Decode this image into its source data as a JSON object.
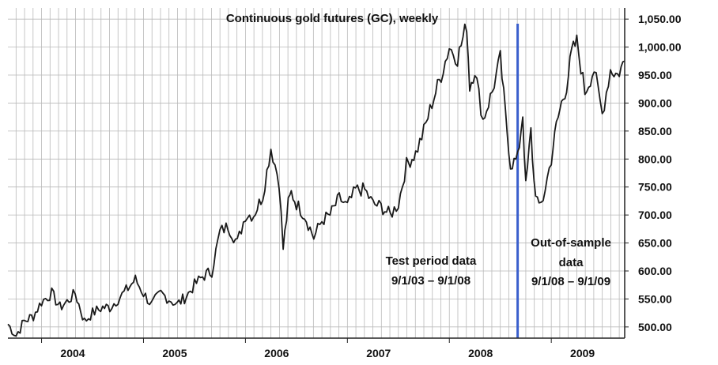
{
  "chart_data": {
    "type": "line",
    "title": "Continuous gold futures (GC), weekly",
    "xlabel": "",
    "ylabel": "",
    "x_tick_labels": [
      "2004",
      "2005",
      "2006",
      "2007",
      "2008",
      "2009"
    ],
    "y_tick_labels": [
      "500.00",
      "550.00",
      "600.00",
      "650.00",
      "700.00",
      "750.00",
      "800.00",
      "850.00",
      "900.00",
      "950.00",
      "1,000.00",
      "1,050.00"
    ],
    "ylim": [
      480,
      1070
    ],
    "xlim": [
      2003.67,
      2009.72
    ],
    "grid": true,
    "series_color": "#1a1a1a",
    "divider": {
      "x": 2008.67,
      "color": "#3a5fcd"
    },
    "annotations": {
      "test_line1": "Test period data",
      "test_line2": "9/1/03 – 9/1/08",
      "oos_line1": "Out-of-sample",
      "oos_line2": "data",
      "oos_line3": "9/1/08 – 9/1/09"
    },
    "series": [
      {
        "x": [
          2003.67,
          2003.75,
          2003.83,
          2003.92,
          2004.0,
          2004.1,
          2004.18,
          2004.25,
          2004.33,
          2004.42,
          2004.5,
          2004.6,
          2004.67,
          2004.75,
          2004.83,
          2004.92,
          2005.0,
          2005.08,
          2005.17,
          2005.25,
          2005.33,
          2005.42,
          2005.5,
          2005.58,
          2005.67,
          2005.75,
          2005.83,
          2005.92,
          2006.0,
          2006.08,
          2006.17,
          2006.25,
          2006.33,
          2006.37,
          2006.42,
          2006.45,
          2006.5,
          2006.58,
          2006.67,
          2006.75,
          2006.83,
          2006.92,
          2007.0,
          2007.08,
          2007.17,
          2007.25,
          2007.33,
          2007.42,
          2007.5,
          2007.58,
          2007.67,
          2007.75,
          2007.83,
          2007.92,
          2008.0,
          2008.08,
          2008.17,
          2008.2,
          2008.25,
          2008.33,
          2008.42,
          2008.5,
          2008.55,
          2008.6,
          2008.67,
          2008.72,
          2008.75,
          2008.8,
          2008.83,
          2008.88,
          2008.92,
          2009.0,
          2009.05,
          2009.1,
          2009.15,
          2009.2,
          2009.25,
          2009.33,
          2009.42,
          2009.5,
          2009.58,
          2009.65,
          2009.72
        ],
        "values": [
          505,
          485,
          510,
          520,
          545,
          560,
          535,
          545,
          560,
          510,
          525,
          535,
          535,
          550,
          565,
          585,
          560,
          540,
          560,
          550,
          540,
          555,
          575,
          590,
          600,
          670,
          680,
          650,
          700,
          700,
          735,
          820,
          760,
          640,
          720,
          740,
          720,
          700,
          660,
          690,
          700,
          730,
          715,
          745,
          745,
          720,
          715,
          700,
          720,
          790,
          810,
          850,
          900,
          950,
          1000,
          980,
          1040,
          930,
          960,
          870,
          920,
          980,
          880,
          790,
          800,
          880,
          750,
          850,
          760,
          710,
          730,
          800,
          860,
          900,
          930,
          990,
          1010,
          920,
          960,
          880,
          960,
          950,
          975
        ]
      }
    ]
  }
}
